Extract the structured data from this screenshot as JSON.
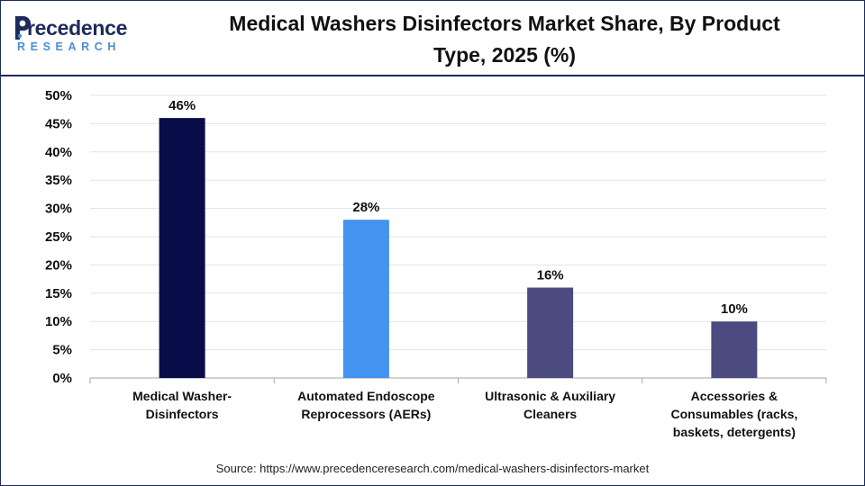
{
  "header": {
    "logo_main": "recedence",
    "logo_sub": "RESEARCH",
    "title_line1": "Medical Washers Disinfectors Market Share, By Product",
    "title_line2": "Type, 2025 (%)"
  },
  "footer": {
    "source": "Source: https://www.precedenceresearch.com/medical-washers-disinfectors-market"
  },
  "colors": {
    "brand_navy": "#1d2b5c",
    "brand_blue": "#4a8ed6"
  },
  "chart_data": {
    "type": "bar",
    "categories": [
      [
        "Medical Washer-",
        "Disinfectors"
      ],
      [
        "Automated Endoscope",
        "Reprocessors (AERs)"
      ],
      [
        "Ultrasonic & Auxiliary",
        "Cleaners"
      ],
      [
        "Accessories &",
        "Consumables (racks,",
        "baskets, detergents)"
      ]
    ],
    "values": [
      46,
      28,
      16,
      10
    ],
    "value_labels": [
      "46%",
      "28%",
      "16%",
      "10%"
    ],
    "bar_colors": [
      "#080d4a",
      "#4393f0",
      "#4b4b80",
      "#4b4b80"
    ],
    "ylim": [
      0,
      50
    ],
    "yticks": [
      0,
      5,
      10,
      15,
      20,
      25,
      30,
      35,
      40,
      45,
      50
    ],
    "ytick_labels": [
      "0%",
      "5%",
      "10%",
      "15%",
      "20%",
      "25%",
      "30%",
      "35%",
      "40%",
      "45%",
      "50%"
    ],
    "grid": true,
    "legend": "none"
  }
}
